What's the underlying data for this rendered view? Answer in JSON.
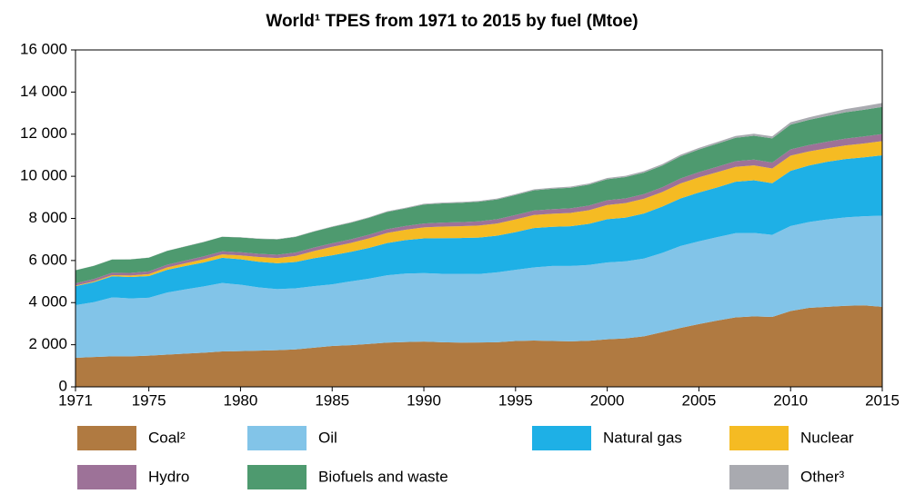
{
  "chart_data": {
    "type": "stacked_area",
    "title": "World¹ TPES from 1971 to 2015 by fuel (Mtoe)",
    "x": [
      1971,
      1972,
      1973,
      1974,
      1975,
      1976,
      1977,
      1978,
      1979,
      1980,
      1981,
      1982,
      1983,
      1984,
      1985,
      1986,
      1987,
      1988,
      1989,
      1990,
      1991,
      1992,
      1993,
      1994,
      1995,
      1996,
      1997,
      1998,
      1999,
      2000,
      2001,
      2002,
      2003,
      2004,
      2005,
      2006,
      2007,
      2008,
      2009,
      2010,
      2011,
      2012,
      2013,
      2014,
      2015
    ],
    "series": [
      {
        "name": "Coal²",
        "color": "#b07a41",
        "values": [
          1380,
          1420,
          1450,
          1450,
          1480,
          1530,
          1580,
          1620,
          1680,
          1700,
          1720,
          1740,
          1780,
          1860,
          1940,
          1980,
          2040,
          2100,
          2130,
          2150,
          2120,
          2100,
          2110,
          2120,
          2180,
          2200,
          2180,
          2160,
          2190,
          2260,
          2300,
          2400,
          2600,
          2800,
          2980,
          3150,
          3300,
          3350,
          3320,
          3600,
          3750,
          3800,
          3850,
          3870,
          3800
        ]
      },
      {
        "name": "Oil",
        "color": "#82c4e8",
        "values": [
          2500,
          2600,
          2800,
          2750,
          2750,
          2950,
          3050,
          3150,
          3250,
          3150,
          3000,
          2900,
          2900,
          2920,
          2930,
          3030,
          3100,
          3200,
          3250,
          3250,
          3250,
          3270,
          3250,
          3320,
          3380,
          3470,
          3560,
          3580,
          3600,
          3650,
          3660,
          3690,
          3760,
          3890,
          3930,
          3960,
          4000,
          3960,
          3900,
          4040,
          4080,
          4150,
          4200,
          4230,
          4330
        ]
      },
      {
        "name": "Natural gas",
        "color": "#1eb0e6",
        "values": [
          900,
          950,
          1000,
          1020,
          1030,
          1080,
          1110,
          1140,
          1200,
          1210,
          1220,
          1230,
          1250,
          1330,
          1380,
          1400,
          1460,
          1530,
          1590,
          1650,
          1690,
          1700,
          1730,
          1740,
          1790,
          1870,
          1860,
          1890,
          1950,
          2050,
          2080,
          2140,
          2200,
          2260,
          2320,
          2360,
          2440,
          2500,
          2450,
          2620,
          2680,
          2740,
          2770,
          2800,
          2870
        ]
      },
      {
        "name": "Nuclear",
        "color": "#f5bb23",
        "values": [
          30,
          40,
          55,
          70,
          95,
          110,
          130,
          150,
          160,
          185,
          225,
          250,
          285,
          340,
          400,
          420,
          450,
          480,
          490,
          525,
          550,
          560,
          570,
          580,
          600,
          620,
          620,
          630,
          650,
          675,
          690,
          700,
          690,
          710,
          720,
          725,
          710,
          710,
          700,
          720,
          670,
          640,
          645,
          660,
          670
        ]
      },
      {
        "name": "Hydro",
        "color": "#9d7298",
        "values": [
          105,
          110,
          112,
          125,
          128,
          128,
          130,
          140,
          145,
          150,
          152,
          155,
          160,
          165,
          170,
          172,
          172,
          178,
          178,
          185,
          190,
          190,
          200,
          200,
          210,
          212,
          215,
          218,
          220,
          225,
          220,
          225,
          225,
          240,
          250,
          260,
          265,
          275,
          280,
          295,
          300,
          315,
          325,
          330,
          335
        ]
      },
      {
        "name": "Biofuels and waste",
        "color": "#4e9a6f",
        "values": [
          620,
          625,
          630,
          640,
          650,
          660,
          670,
          680,
          690,
          700,
          715,
          730,
          745,
          760,
          775,
          790,
          805,
          820,
          835,
          900,
          910,
          920,
          930,
          940,
          950,
          960,
          970,
          980,
          990,
          1000,
          1010,
          1020,
          1030,
          1050,
          1070,
          1090,
          1110,
          1130,
          1150,
          1180,
          1200,
          1220,
          1250,
          1270,
          1290
        ]
      },
      {
        "name": "Other³",
        "color": "#a9aab0",
        "values": [
          5,
          5,
          6,
          6,
          7,
          7,
          8,
          8,
          9,
          10,
          12,
          14,
          16,
          18,
          22,
          25,
          28,
          30,
          33,
          36,
          38,
          40,
          42,
          44,
          46,
          48,
          50,
          53,
          56,
          60,
          62,
          65,
          70,
          75,
          80,
          85,
          90,
          95,
          100,
          110,
          120,
          135,
          150,
          170,
          190
        ]
      }
    ],
    "xlim": [
      1971,
      2015
    ],
    "xticks": [
      1971,
      1975,
      1980,
      1985,
      1990,
      1995,
      2000,
      2005,
      2010,
      2015
    ],
    "ylim": [
      0,
      16000
    ],
    "yticks": [
      0,
      {
        "value": 2000,
        "label": "2 000"
      },
      {
        "value": 4000,
        "label": "4 000"
      },
      {
        "value": 6000,
        "label": "6 000"
      },
      {
        "value": 8000,
        "label": "8 000"
      },
      {
        "value": 10000,
        "label": "10 000"
      },
      {
        "value": 12000,
        "label": "12 000"
      },
      {
        "value": 14000,
        "label": "14 000"
      },
      {
        "value": 16000,
        "label": "16 000"
      }
    ]
  }
}
